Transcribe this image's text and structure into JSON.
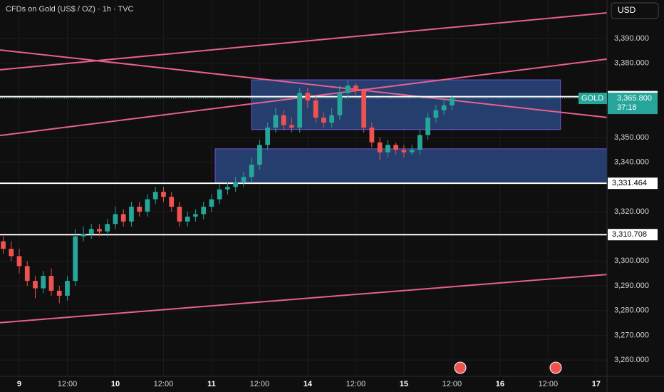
{
  "chart_data": {
    "type": "candlestick",
    "title": "CFDs on Gold (US$ / OZ) · 1h · TVC",
    "currency": "USD",
    "symbol": "GOLD",
    "countdown": "37:18",
    "up_color": "#26a69a",
    "down_color": "#ef5350",
    "trendline_color": "#e8608f",
    "zone_color": "#2c4a85",
    "zone_border": "#7b4fd6",
    "grid": true,
    "xlim": [
      -4.8,
      146.7
    ],
    "ylim": [
      3253.4,
      3405.6
    ],
    "xticks": [
      {
        "value": 0,
        "label": "9"
      },
      {
        "value": 12,
        "label": "12:00"
      },
      {
        "value": 24,
        "label": "10"
      },
      {
        "value": 36,
        "label": "12:00"
      },
      {
        "value": 48,
        "label": "11"
      },
      {
        "value": 60,
        "label": "12:00"
      },
      {
        "value": 72,
        "label": "14"
      },
      {
        "value": 84,
        "label": "12:00"
      },
      {
        "value": 96,
        "label": "15"
      },
      {
        "value": 108,
        "label": "12:00"
      },
      {
        "value": 120,
        "label": "16"
      },
      {
        "value": 132,
        "label": "12:00"
      },
      {
        "value": 144,
        "label": "17"
      }
    ],
    "yticks": [
      {
        "value": 3260,
        "label": "3,260.000"
      },
      {
        "value": 3270,
        "label": "3,270.000"
      },
      {
        "value": 3280,
        "label": "3,280.000"
      },
      {
        "value": 3290,
        "label": "3,290.000"
      },
      {
        "value": 3300,
        "label": "3,300.000"
      },
      {
        "value": 3320,
        "label": "3,320.000"
      },
      {
        "value": 3340,
        "label": "3,340.000"
      },
      {
        "value": 3350,
        "label": "3,350.000"
      },
      {
        "value": 3380,
        "label": "3,380.000"
      },
      {
        "value": 3390,
        "label": "3,390.000"
      }
    ],
    "levels": [
      {
        "value": 3366.509,
        "label": "3,366.509"
      },
      {
        "value": 3331.464,
        "label": "3,331.464"
      },
      {
        "value": 3310.708,
        "label": "3,310.708"
      }
    ],
    "last_price": {
      "value": 3365.8,
      "label": "3,365.800"
    },
    "trendlines": [
      {
        "x": [
          -4.8,
          146.7
        ],
        "y": [
          3350.8,
          3381.7
        ]
      },
      {
        "x": [
          -4.8,
          146.7
        ],
        "y": [
          3385.4,
          3358.1
        ]
      },
      {
        "x": [
          -4.8,
          146.7
        ],
        "y": [
          3377.4,
          3400.4
        ]
      },
      {
        "x": [
          -4.8,
          146.7
        ],
        "y": [
          3275.1,
          3294.6
        ]
      }
    ],
    "zones": [
      {
        "x": [
          58,
          135.1
        ],
        "y": [
          3353.2,
          3373.3
        ]
      },
      {
        "x": [
          48.9,
          146.7
        ],
        "y": [
          3331.4,
          3345.4
        ]
      }
    ],
    "candles": {
      "x": [
        -4,
        -2,
        0,
        2,
        4,
        6,
        8,
        10,
        12,
        14,
        16,
        18,
        20,
        22,
        24,
        26,
        28,
        30,
        32,
        34,
        36,
        38,
        40,
        42,
        44,
        46,
        48,
        50,
        52,
        54,
        56,
        58,
        60,
        62,
        64,
        66,
        68,
        70,
        72,
        74,
        76,
        78,
        80,
        82,
        84,
        86,
        88,
        90,
        92,
        94,
        96,
        98,
        100,
        102,
        104,
        106,
        108
      ],
      "open": [
        3308,
        3305,
        3302,
        3298,
        3292,
        3289,
        3294,
        3288,
        3286,
        3292,
        3310,
        3311,
        3313,
        3312,
        3315,
        3319,
        3316,
        3322,
        3320,
        3325,
        3328,
        3326,
        3322,
        3316,
        3318,
        3319,
        3322,
        3325,
        3329,
        3330,
        3332,
        3334,
        3339,
        3347,
        3354,
        3359,
        3355,
        3354,
        3368,
        3365,
        3358,
        3356,
        3359,
        3368,
        3371,
        3369,
        3354,
        3348,
        3344,
        3347,
        3345,
        3344,
        3345,
        3351,
        3358,
        3361,
        3363
      ],
      "high": [
        3310,
        3308,
        3305,
        3300,
        3294,
        3296,
        3297,
        3290,
        3294,
        3313,
        3314,
        3315,
        3315,
        3317,
        3322,
        3321,
        3324,
        3324,
        3327,
        3330,
        3330,
        3328,
        3324,
        3320,
        3321,
        3324,
        3327,
        3331,
        3332,
        3334,
        3336,
        3342,
        3349,
        3356,
        3362,
        3361,
        3358,
        3370,
        3370,
        3367,
        3360,
        3362,
        3371,
        3373,
        3372,
        3370,
        3356,
        3350,
        3349,
        3348,
        3347,
        3347,
        3353,
        3360,
        3363,
        3365,
        3367
      ],
      "low": [
        3303,
        3300,
        3295,
        3290,
        3285,
        3287,
        3286,
        3283,
        3284,
        3290,
        3308,
        3309,
        3310,
        3310,
        3313,
        3314,
        3314,
        3318,
        3318,
        3323,
        3324,
        3320,
        3314,
        3314,
        3316,
        3317,
        3320,
        3323,
        3327,
        3328,
        3330,
        3332,
        3337,
        3345,
        3352,
        3353,
        3352,
        3352,
        3362,
        3356,
        3354,
        3354,
        3357,
        3366,
        3367,
        3352,
        3346,
        3341,
        3342,
        3343,
        3342,
        3343,
        3343,
        3349,
        3356,
        3359,
        3361
      ],
      "close": [
        3305,
        3302,
        3298,
        3292,
        3289,
        3294,
        3288,
        3286,
        3292,
        3310,
        3311,
        3313,
        3312,
        3315,
        3319,
        3316,
        3322,
        3320,
        3325,
        3328,
        3326,
        3322,
        3316,
        3318,
        3319,
        3322,
        3325,
        3329,
        3330,
        3332,
        3334,
        3339,
        3347,
        3354,
        3359,
        3355,
        3354,
        3368,
        3365,
        3358,
        3356,
        3359,
        3368,
        3371,
        3369,
        3354,
        3348,
        3344,
        3347,
        3345,
        3344,
        3345,
        3351,
        3358,
        3361,
        3363,
        3365.8
      ]
    }
  }
}
